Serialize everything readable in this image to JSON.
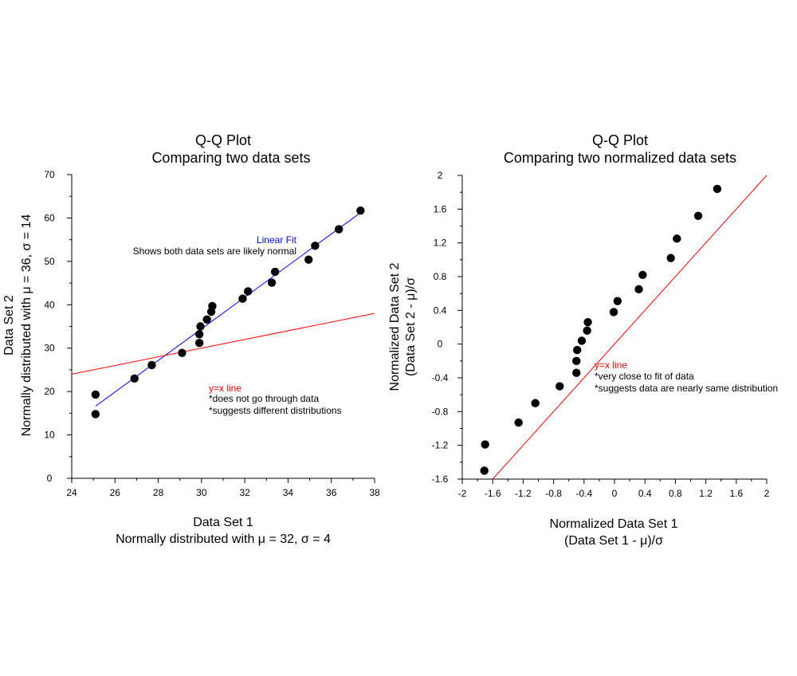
{
  "chart_data": [
    {
      "type": "scatter",
      "title": [
        "Q-Q Plot",
        "Comparing two data sets"
      ],
      "xlabel": [
        "Data Set 1",
        "Normally distributed with μ = 32, σ = 4"
      ],
      "ylabel": [
        "Data Set 2",
        "Normally distributed with μ = 36, σ = 14"
      ],
      "xlim": [
        24,
        38
      ],
      "ylim": [
        0,
        70
      ],
      "xticks": [
        24,
        26,
        28,
        30,
        32,
        34,
        36,
        38
      ],
      "xtick_labels": [
        "24",
        "26",
        "28",
        "30",
        "32",
        "34",
        "36",
        "38"
      ],
      "yticks": [
        0,
        10,
        20,
        30,
        40,
        50,
        60,
        70
      ],
      "ytick_labels": [
        "0",
        "10",
        "20",
        "30",
        "40",
        "50",
        "60",
        "70"
      ],
      "points": {
        "x": [
          25.1,
          25.1,
          26.9,
          27.7,
          29.1,
          29.9,
          29.9,
          29.95,
          30.25,
          30.45,
          30.5,
          31.9,
          32.15,
          33.25,
          33.4,
          34.95,
          35.25,
          36.35,
          37.35
        ],
        "y": [
          14.8,
          19.3,
          23.0,
          26.1,
          28.9,
          31.2,
          33.2,
          35.0,
          36.6,
          38.4,
          39.7,
          41.4,
          43.1,
          45.1,
          47.6,
          50.4,
          53.6,
          57.4,
          61.7
        ]
      },
      "lines": [
        {
          "name": "Linear Fit",
          "x": [
            25.1,
            37.4
          ],
          "y": [
            16.6,
            61.4
          ],
          "color": "#0000ff"
        },
        {
          "name": "y=x line",
          "x": [
            24,
            38
          ],
          "y": [
            24,
            38
          ],
          "color": "#ff0000"
        }
      ],
      "annotations": [
        {
          "title": "Linear Fit",
          "lines": [
            "Shows both data sets are likely normal"
          ],
          "title_color": "#0000ff"
        },
        {
          "title": "y=x line",
          "lines": [
            "*does not go through data",
            "*suggests different distributions"
          ],
          "title_color": "#ff0000"
        }
      ]
    },
    {
      "type": "scatter",
      "title": [
        "Q-Q Plot",
        "Comparing two normalized data sets"
      ],
      "xlabel": [
        "Normalized Data Set 1",
        "(Data Set 1 - μ)/σ"
      ],
      "ylabel": [
        "Normalized Data Set 2",
        "(Data Set 2 - μ)/σ"
      ],
      "xlim": [
        -2,
        2
      ],
      "ylim": [
        -1.6,
        2
      ],
      "xticks": [
        -2,
        -1.6,
        -1.2,
        -0.8,
        -0.4,
        0,
        0.4,
        0.8,
        1.2,
        1.6,
        2
      ],
      "xtick_labels": [
        "-2",
        "-1.6",
        "-1.2",
        "-0.8",
        "-0.4",
        "0",
        "0.4",
        "0.8",
        "1.2",
        "1.6",
        "2"
      ],
      "yticks": [
        -1.6,
        -1.2,
        -0.8,
        -0.4,
        0,
        0.4,
        0.8,
        1.2,
        1.6,
        2
      ],
      "ytick_labels": [
        "-1.6",
        "-1.2",
        "-0.8",
        "-0.4",
        "0",
        "0.4",
        "0.8",
        "1.2",
        "1.6",
        "2"
      ],
      "points": {
        "x": [
          -1.71,
          -1.7,
          -1.26,
          -1.04,
          -0.72,
          -0.5,
          -0.5,
          -0.49,
          -0.43,
          -0.36,
          -0.35,
          -0.01,
          0.04,
          0.32,
          0.37,
          0.74,
          0.82,
          1.1,
          1.35
        ],
        "y": [
          -1.5,
          -1.19,
          -0.93,
          -0.7,
          -0.5,
          -0.34,
          -0.2,
          -0.07,
          0.04,
          0.16,
          0.26,
          0.38,
          0.51,
          0.65,
          0.82,
          1.02,
          1.25,
          1.52,
          1.84
        ]
      },
      "lines": [
        {
          "name": "y=x line",
          "x": [
            -1.6,
            2
          ],
          "y": [
            -1.6,
            2
          ],
          "color": "#ff0000"
        }
      ],
      "annotations": [
        {
          "title": "y=x line",
          "lines": [
            "*very close to fit of data",
            "*suggests data are nearly same distribution"
          ],
          "title_color": "#ff0000"
        }
      ]
    }
  ]
}
